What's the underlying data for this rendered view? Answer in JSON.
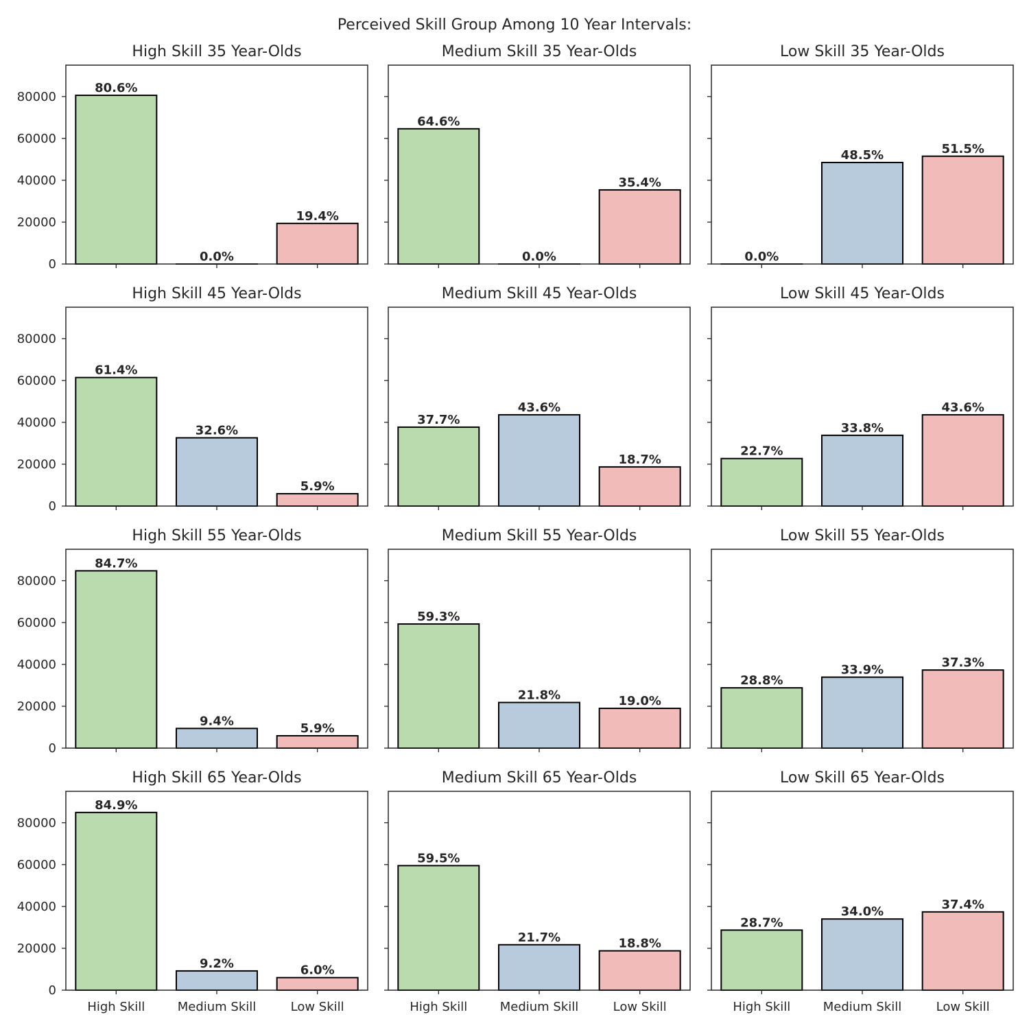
{
  "suptitle": "Perceived Skill Group Among 10 Year Intervals:",
  "chart_data": {
    "type": "bar",
    "layout": "4 rows x 3 columns of subplots, shared y-axis, y tick labels on left column, x tick labels on bottom row",
    "categories": [
      "High Skill",
      "Medium Skill",
      "Low Skill"
    ],
    "bar_colors": [
      "#b9dbae",
      "#b8cbdd",
      "#f0bbb8"
    ],
    "edge_color": "#000000",
    "ylim": [
      0,
      95000
    ],
    "yticks": [
      0,
      20000,
      40000,
      60000,
      80000
    ],
    "ytick_labels": [
      "0",
      "20000",
      "40000",
      "60000",
      "80000"
    ],
    "grid": false,
    "panels": [
      {
        "title": "High Skill 35 Year-Olds",
        "values": [
          80600,
          0,
          19400
        ],
        "labels": [
          "80.6%",
          "0.0%",
          "19.4%"
        ]
      },
      {
        "title": "Medium Skill 35 Year-Olds",
        "values": [
          64600,
          0,
          35400
        ],
        "labels": [
          "64.6%",
          "0.0%",
          "35.4%"
        ]
      },
      {
        "title": "Low Skill 35 Year-Olds",
        "values": [
          0,
          48500,
          51500
        ],
        "labels": [
          "0.0%",
          "48.5%",
          "51.5%"
        ]
      },
      {
        "title": "High Skill 45 Year-Olds",
        "values": [
          61400,
          32600,
          5900
        ],
        "labels": [
          "61.4%",
          "32.6%",
          "5.9%"
        ]
      },
      {
        "title": "Medium Skill 45 Year-Olds",
        "values": [
          37700,
          43600,
          18700
        ],
        "labels": [
          "37.7%",
          "43.6%",
          "18.7%"
        ]
      },
      {
        "title": "Low Skill 45 Year-Olds",
        "values": [
          22700,
          33800,
          43600
        ],
        "labels": [
          "22.7%",
          "33.8%",
          "43.6%"
        ]
      },
      {
        "title": "High Skill 55 Year-Olds",
        "values": [
          84700,
          9400,
          5900
        ],
        "labels": [
          "84.7%",
          "9.4%",
          "5.9%"
        ]
      },
      {
        "title": "Medium Skill 55 Year-Olds",
        "values": [
          59300,
          21800,
          19000
        ],
        "labels": [
          "59.3%",
          "21.8%",
          "19.0%"
        ]
      },
      {
        "title": "Low Skill 55 Year-Olds",
        "values": [
          28800,
          33900,
          37300
        ],
        "labels": [
          "28.8%",
          "33.9%",
          "37.3%"
        ]
      },
      {
        "title": "High Skill 65 Year-Olds",
        "values": [
          84900,
          9200,
          6000
        ],
        "labels": [
          "84.9%",
          "9.2%",
          "6.0%"
        ]
      },
      {
        "title": "Medium Skill 65 Year-Olds",
        "values": [
          59500,
          21700,
          18800
        ],
        "labels": [
          "59.5%",
          "21.7%",
          "18.8%"
        ]
      },
      {
        "title": "Low Skill 65 Year-Olds",
        "values": [
          28700,
          34000,
          37400
        ],
        "labels": [
          "28.7%",
          "34.0%",
          "37.4%"
        ]
      }
    ]
  }
}
